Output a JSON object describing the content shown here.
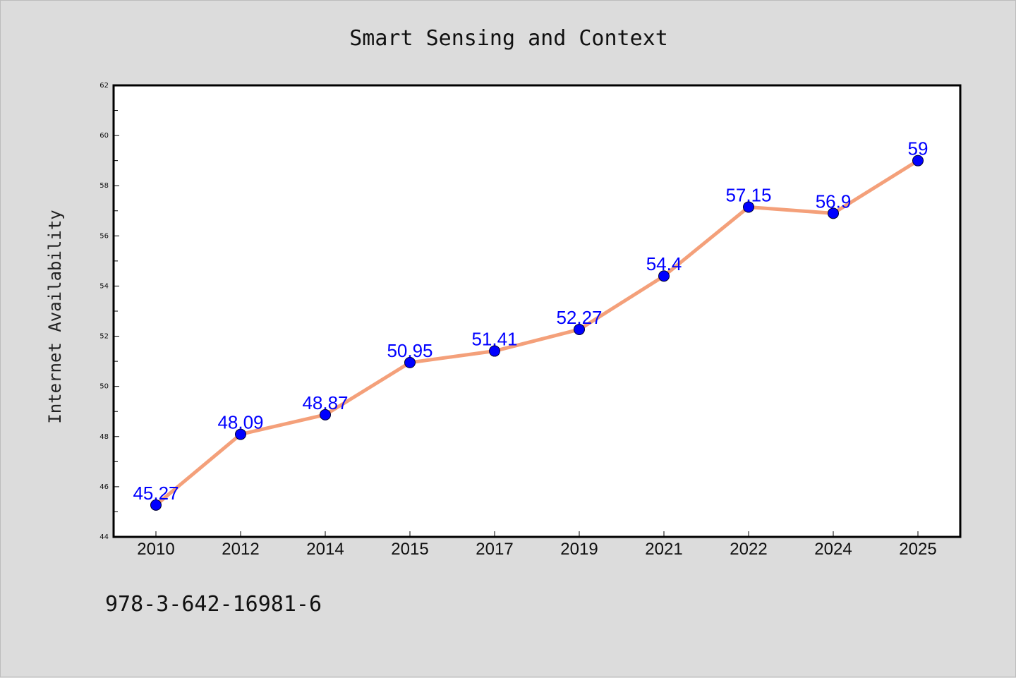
{
  "chart_data": {
    "type": "line",
    "title": "Smart Sensing and Context",
    "xlabel": "",
    "ylabel": "Internet Availability",
    "categories": [
      "2010",
      "2012",
      "2014",
      "2015",
      "2017",
      "2019",
      "2021",
      "2022",
      "2024",
      "2025"
    ],
    "series": [
      {
        "values": [
          45.27,
          48.09,
          48.87,
          50.95,
          51.41,
          52.27,
          54.4,
          57.15,
          56.9,
          59
        ]
      }
    ],
    "data_labels": [
      "45.27",
      "48.09",
      "48.87",
      "50.95",
      "51.41",
      "52.27",
      "54.4",
      "57.15",
      "56.9",
      "59"
    ],
    "ylim": [
      44,
      62
    ],
    "yticks": [
      44,
      46,
      48,
      50,
      52,
      54,
      56,
      58,
      60,
      62
    ],
    "grid": false,
    "legend": "none"
  },
  "footer": {
    "text": "978-3-642-16981-6"
  },
  "colors": {
    "background": "#dcdcdc",
    "plot_background": "#ffffff",
    "line": "#f4a07a",
    "marker": "#0000ff",
    "data_label": "#0000ff"
  }
}
